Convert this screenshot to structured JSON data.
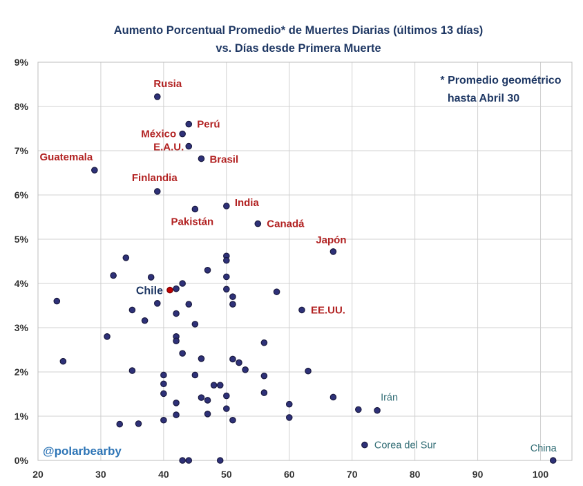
{
  "chart_data": {
    "type": "scatter",
    "title": "Aumento Porcentual Promedio* de Muertes Diarias (últimos 13 días)",
    "subtitle": "vs. Días desde Primera Muerte",
    "note_line1": "* Promedio geométrico",
    "note_line2": "hasta Abril 30",
    "watermark": "@polarbearby",
    "xlim": [
      20,
      105
    ],
    "ylim": [
      0,
      9
    ],
    "x_ticks": [
      20,
      30,
      40,
      50,
      60,
      70,
      80,
      90,
      100
    ],
    "y_ticks": [
      0,
      1,
      2,
      3,
      4,
      5,
      6,
      7,
      8,
      9
    ],
    "y_tick_labels": [
      "0%",
      "1%",
      "2%",
      "3%",
      "4%",
      "5%",
      "6%",
      "7%",
      "8%",
      "9%"
    ],
    "grid": true,
    "colors": {
      "title": "#1f3864",
      "point_fill": "#2e3178",
      "point_stroke": "#1a1a40",
      "highlight_point": "#c00000",
      "label_red": "#b22222",
      "label_teal": "#2f6b73",
      "label_navy": "#1f3864",
      "watermark": "#2e75b6",
      "grid": "#d0d0d0",
      "axis_text": "#333333"
    },
    "labeled_points": [
      {
        "name": "Rusia",
        "x": 39,
        "y": 8.22,
        "color": "label_red"
      },
      {
        "name": "Perú",
        "x": 44,
        "y": 7.6,
        "color": "label_red"
      },
      {
        "name": "México",
        "x": 43,
        "y": 7.38,
        "color": "label_red"
      },
      {
        "name": "E.A.U.",
        "x": 44,
        "y": 7.1,
        "color": "label_red"
      },
      {
        "name": "Brasil",
        "x": 46,
        "y": 6.82,
        "color": "label_red"
      },
      {
        "name": "Guatemala",
        "x": 29,
        "y": 6.56,
        "color": "label_red"
      },
      {
        "name": "Finlandia",
        "x": 39,
        "y": 6.08,
        "color": "label_red"
      },
      {
        "name": "India",
        "x": 50,
        "y": 5.75,
        "color": "label_red"
      },
      {
        "name": "Pakistán",
        "x": 45,
        "y": 5.68,
        "color": "label_red"
      },
      {
        "name": "Canadá",
        "x": 55,
        "y": 5.35,
        "color": "label_red"
      },
      {
        "name": "Japón",
        "x": 67,
        "y": 4.72,
        "color": "label_red"
      },
      {
        "name": "Chile",
        "x": 41,
        "y": 3.85,
        "color": "label_navy",
        "highlight": true
      },
      {
        "name": "EE.UU.",
        "x": 62,
        "y": 3.4,
        "color": "label_red"
      },
      {
        "name": "Irán",
        "x": 74,
        "y": 1.13,
        "color": "label_teal"
      },
      {
        "name": "Corea del Sur",
        "x": 72,
        "y": 0.35,
        "color": "label_teal"
      },
      {
        "name": "China",
        "x": 102,
        "y": 0.0,
        "color": "label_teal"
      }
    ],
    "points": [
      {
        "x": 23,
        "y": 3.6
      },
      {
        "x": 24,
        "y": 2.24
      },
      {
        "x": 31,
        "y": 2.8
      },
      {
        "x": 32,
        "y": 4.18
      },
      {
        "x": 33,
        "y": 0.82
      },
      {
        "x": 34,
        "y": 4.58
      },
      {
        "x": 35,
        "y": 3.4
      },
      {
        "x": 35,
        "y": 2.03
      },
      {
        "x": 36,
        "y": 0.83
      },
      {
        "x": 37,
        "y": 3.16
      },
      {
        "x": 38,
        "y": 4.14
      },
      {
        "x": 39,
        "y": 3.55
      },
      {
        "x": 40,
        "y": 1.93
      },
      {
        "x": 40,
        "y": 1.73
      },
      {
        "x": 40,
        "y": 1.51
      },
      {
        "x": 40,
        "y": 0.91
      },
      {
        "x": 42,
        "y": 3.88
      },
      {
        "x": 42,
        "y": 3.32
      },
      {
        "x": 42,
        "y": 2.8
      },
      {
        "x": 42,
        "y": 2.7
      },
      {
        "x": 42,
        "y": 1.3
      },
      {
        "x": 42,
        "y": 1.03
      },
      {
        "x": 43,
        "y": 4.0
      },
      {
        "x": 43,
        "y": 2.42
      },
      {
        "x": 43,
        "y": 0.0
      },
      {
        "x": 44,
        "y": 3.53
      },
      {
        "x": 44,
        "y": 0.0
      },
      {
        "x": 45,
        "y": 3.08
      },
      {
        "x": 45,
        "y": 1.93
      },
      {
        "x": 46,
        "y": 2.3
      },
      {
        "x": 46,
        "y": 1.42
      },
      {
        "x": 47,
        "y": 4.3
      },
      {
        "x": 47,
        "y": 1.36
      },
      {
        "x": 47,
        "y": 1.05
      },
      {
        "x": 48,
        "y": 1.7
      },
      {
        "x": 49,
        "y": 1.7
      },
      {
        "x": 49,
        "y": 0.0
      },
      {
        "x": 50,
        "y": 4.62
      },
      {
        "x": 50,
        "y": 4.52
      },
      {
        "x": 50,
        "y": 4.15
      },
      {
        "x": 50,
        "y": 3.87
      },
      {
        "x": 50,
        "y": 1.46
      },
      {
        "x": 50,
        "y": 1.17
      },
      {
        "x": 51,
        "y": 3.7
      },
      {
        "x": 51,
        "y": 3.53
      },
      {
        "x": 51,
        "y": 2.29
      },
      {
        "x": 51,
        "y": 0.91
      },
      {
        "x": 52,
        "y": 2.21
      },
      {
        "x": 53,
        "y": 2.05
      },
      {
        "x": 56,
        "y": 2.66
      },
      {
        "x": 56,
        "y": 1.91
      },
      {
        "x": 56,
        "y": 1.53
      },
      {
        "x": 58,
        "y": 3.81
      },
      {
        "x": 60,
        "y": 1.27
      },
      {
        "x": 60,
        "y": 0.97
      },
      {
        "x": 63,
        "y": 2.02
      },
      {
        "x": 67,
        "y": 1.43
      },
      {
        "x": 71,
        "y": 1.15
      }
    ]
  }
}
